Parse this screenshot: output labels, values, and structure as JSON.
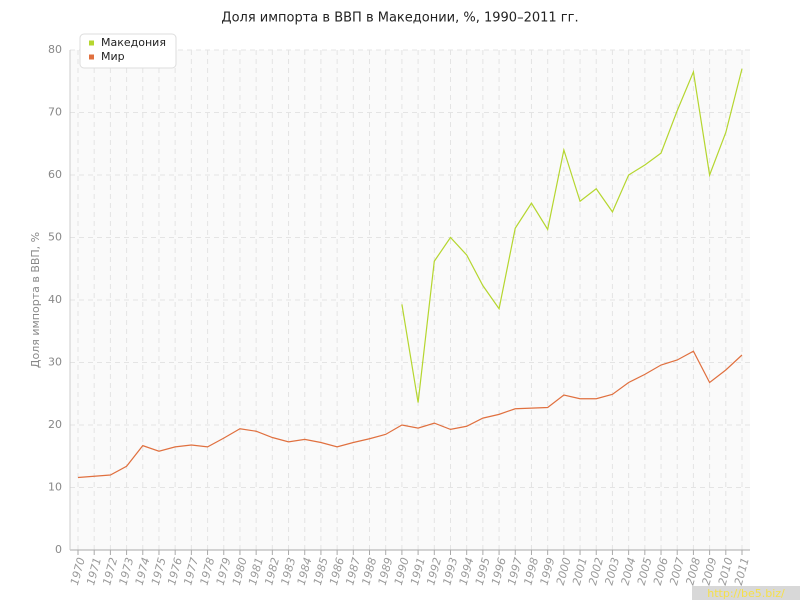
{
  "chart_data": {
    "type": "line",
    "title": "Доля импорта в ВВП в Македонии, %, 1990–2011 гг.",
    "y_label": "Доля импорта в ВВП, %",
    "watermark": "http://be5.biz/",
    "categories": [
      "1970",
      "1971",
      "1972",
      "1973",
      "1974",
      "1975",
      "1976",
      "1977",
      "1978",
      "1979",
      "1980",
      "1981",
      "1982",
      "1983",
      "1984",
      "1985",
      "1986",
      "1987",
      "1988",
      "1989",
      "1990",
      "1991",
      "1992",
      "1993",
      "1994",
      "1995",
      "1996",
      "1997",
      "1998",
      "1999",
      "2000",
      "2001",
      "2002",
      "2003",
      "2004",
      "2005",
      "2006",
      "2007",
      "2008",
      "2009",
      "2010",
      "2011"
    ],
    "series": [
      {
        "name": "Македония",
        "color": "#b5d62f",
        "values": [
          null,
          null,
          null,
          null,
          null,
          null,
          null,
          null,
          null,
          null,
          null,
          null,
          null,
          null,
          null,
          null,
          null,
          null,
          null,
          null,
          39.3,
          23.6,
          46.2,
          50.0,
          47.2,
          42.3,
          38.6,
          51.5,
          55.5,
          51.3,
          64.0,
          55.8,
          57.8,
          54.1,
          60.0,
          61.6,
          63.5,
          70.3,
          76.5,
          60.0,
          66.8,
          77.0
        ]
      },
      {
        "name": "Мир",
        "color": "#e0703f",
        "values": [
          11.6,
          11.8,
          12.0,
          13.4,
          16.7,
          15.8,
          16.5,
          16.8,
          16.5,
          17.9,
          19.4,
          19.0,
          18.0,
          17.3,
          17.7,
          17.2,
          16.5,
          17.2,
          17.8,
          18.5,
          20.0,
          19.5,
          20.3,
          19.3,
          19.8,
          21.1,
          21.7,
          22.6,
          22.7,
          22.8,
          24.8,
          24.2,
          24.2,
          24.9,
          26.8,
          28.1,
          29.6,
          30.4,
          31.8,
          26.8,
          28.8,
          31.2
        ]
      }
    ],
    "ylim": [
      0,
      80
    ],
    "yticks": [
      0,
      10,
      20,
      30,
      40,
      50,
      60,
      70,
      80
    ],
    "grid": true,
    "legend": "top-left"
  }
}
